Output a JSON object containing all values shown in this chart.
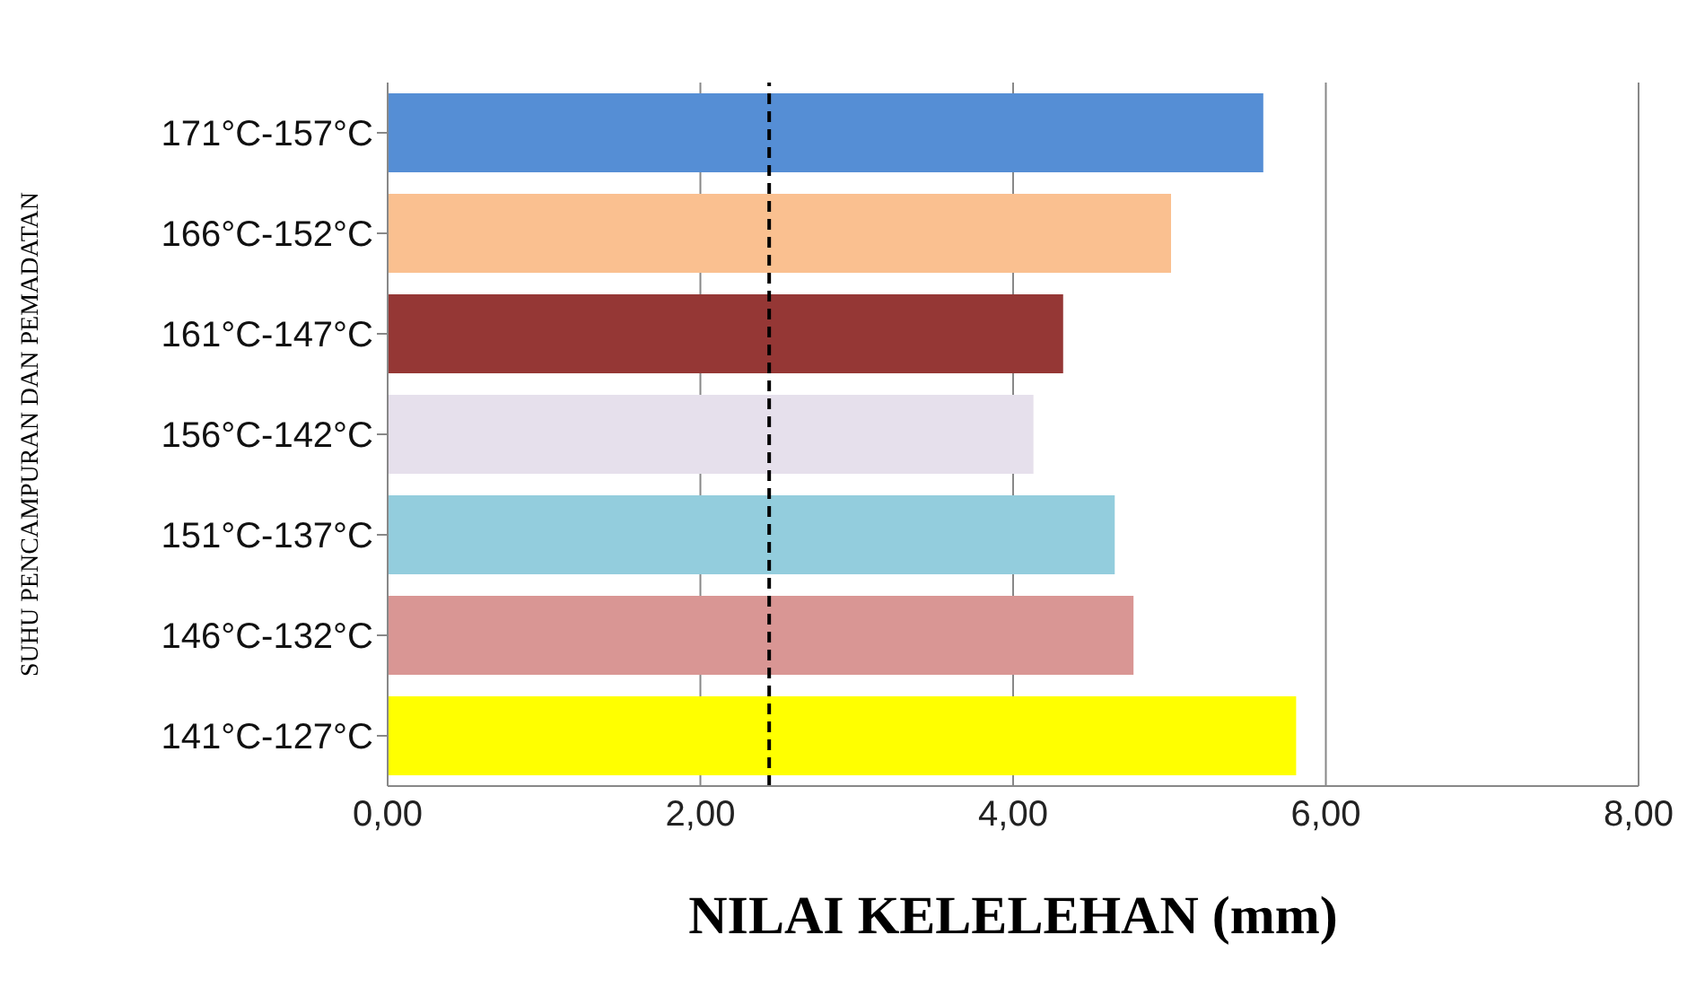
{
  "chart_data": {
    "type": "bar",
    "orientation": "horizontal",
    "xlabel": "NILAI KELELEHAN (mm)",
    "ylabel": "SUHU PENCAMPURAN DAN PEMADATAN",
    "categories": [
      "171°C-157°C",
      "166°C-152°C",
      "161°C-147°C",
      "156°C-142°C",
      "151°C-137°C",
      "146°C-132°C",
      "141°C-127°C"
    ],
    "values": [
      5.6,
      5.01,
      4.32,
      4.13,
      4.65,
      4.77,
      5.81
    ],
    "colors": [
      "#558ed5",
      "#fac090",
      "#953735",
      "#e6e0ec",
      "#93cddd",
      "#d99694",
      "#ffff00"
    ],
    "xlim": [
      0,
      8
    ],
    "xticks": [
      {
        "value": 0,
        "label": "0,00"
      },
      {
        "value": 2,
        "label": "2,00"
      },
      {
        "value": 4,
        "label": "4,00"
      },
      {
        "value": 6,
        "label": "6,00"
      },
      {
        "value": 8,
        "label": "8,00"
      }
    ],
    "grid": "x",
    "ref_lines": [
      {
        "axis": "x",
        "value": 2.44,
        "color": "#000000",
        "line_style": "dashed"
      }
    ]
  }
}
